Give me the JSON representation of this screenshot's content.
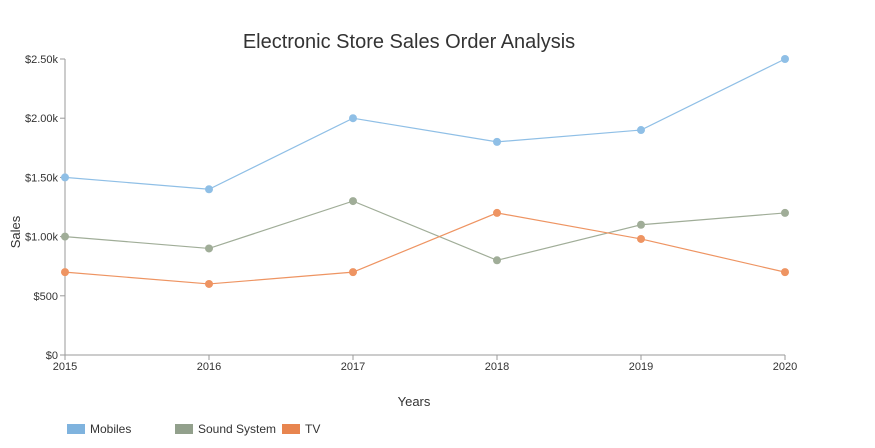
{
  "chart_data": {
    "type": "line",
    "title": "Electronic Store Sales Order Analysis",
    "xlabel": "Years",
    "ylabel": "Sales",
    "x": [
      "2015",
      "2016",
      "2017",
      "2018",
      "2019",
      "2020"
    ],
    "y_ticks": [
      "$0",
      "$500",
      "$1.00k",
      "$1.50k",
      "$2.00k",
      "$2.50k"
    ],
    "ylim": [
      0,
      2500
    ],
    "grid": false,
    "legend_position": "bottom-left",
    "series": [
      {
        "name": "Mobiles",
        "values": [
          1500,
          1400,
          2000,
          1800,
          1900,
          2500
        ],
        "color": "#8fbfe6",
        "legend_color": "#7fb3de"
      },
      {
        "name": "Sound System",
        "values": [
          1000,
          900,
          1300,
          800,
          1100,
          1200
        ],
        "color": "#a0ad98",
        "legend_color": "#92a08c"
      },
      {
        "name": "TV",
        "values": [
          700,
          600,
          700,
          1200,
          980,
          700
        ],
        "color": "#ee9462",
        "legend_color": "#e8854f"
      }
    ]
  }
}
